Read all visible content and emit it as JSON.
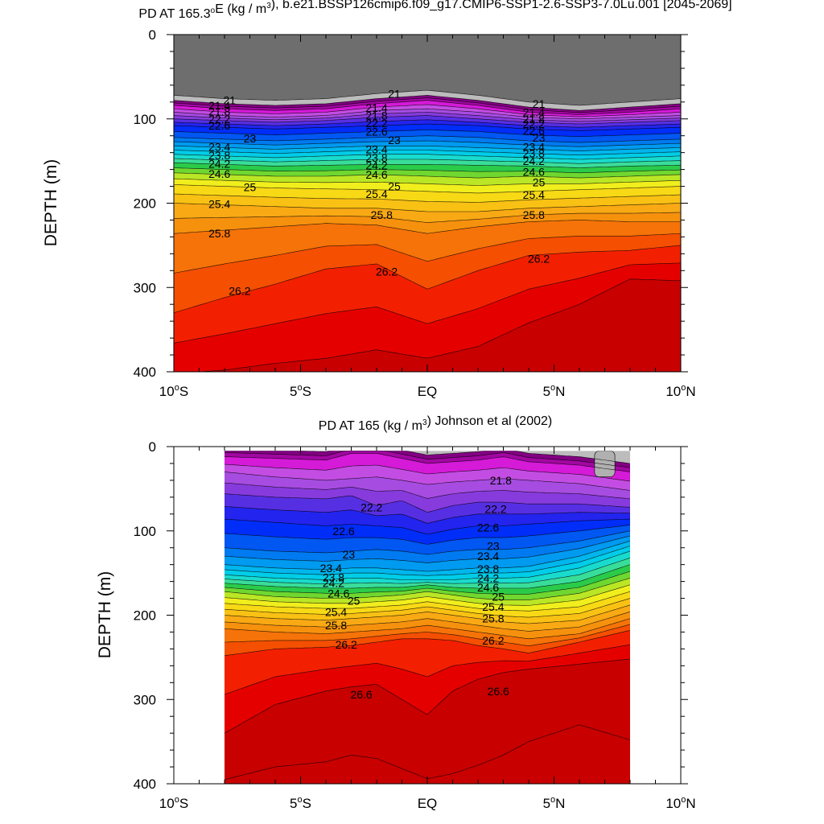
{
  "chart_data": [
    {
      "type": "contour",
      "title": "PD AT 165.3°E (kg / m³), b.e21.BSSP126cmip6.f09_g17.CMIP6-SSP1-2.6-SSP3-7.0Lu.001 [2045-2069]",
      "ylabel": "DEPTH (m)",
      "xlabel": "",
      "xlim": [
        -10,
        10
      ],
      "ylim": [
        400,
        0
      ],
      "x_ticks": [
        -10,
        -5,
        0,
        5,
        10
      ],
      "x_tick_labels": [
        "10°S",
        "5°S",
        "EQ",
        "5°N",
        "10°N"
      ],
      "y_ticks": [
        0,
        100,
        200,
        300,
        400
      ],
      "y_tick_labels": [
        "0",
        "100",
        "200",
        "300",
        "400"
      ],
      "data_extent": [
        -10,
        10
      ],
      "levels": [
        20.6,
        21.0,
        21.2,
        21.4,
        21.6,
        21.8,
        22.0,
        22.2,
        22.4,
        22.6,
        22.8,
        23.0,
        23.2,
        23.4,
        23.6,
        23.8,
        24.0,
        24.2,
        24.4,
        24.6,
        24.8,
        25.0,
        25.2,
        25.4,
        25.6,
        25.8,
        26.0,
        26.2,
        26.4,
        26.6
      ],
      "x": [
        -10,
        -8,
        -6,
        -4,
        -2,
        0,
        2,
        4,
        6,
        8,
        10
      ],
      "isopycnals": [
        {
          "sigma": 20.6,
          "depth": [
            72,
            76,
            78,
            76,
            70,
            66,
            72,
            80,
            84,
            80,
            76
          ]
        },
        {
          "sigma": 21.0,
          "depth": [
            78,
            82,
            84,
            82,
            76,
            72,
            78,
            86,
            90,
            86,
            82
          ]
        },
        {
          "sigma": 21.4,
          "depth": [
            84,
            88,
            90,
            88,
            82,
            78,
            84,
            92,
            95,
            92,
            88
          ]
        },
        {
          "sigma": 21.8,
          "depth": [
            92,
            96,
            98,
            96,
            90,
            88,
            92,
            98,
            100,
            98,
            96
          ]
        },
        {
          "sigma": 22.2,
          "depth": [
            100,
            102,
            104,
            102,
            98,
            96,
            100,
            104,
            106,
            104,
            102
          ]
        },
        {
          "sigma": 22.6,
          "depth": [
            108,
            110,
            112,
            110,
            108,
            106,
            108,
            112,
            114,
            112,
            110
          ]
        },
        {
          "sigma": 23.0,
          "depth": [
            122,
            124,
            126,
            124,
            122,
            120,
            122,
            126,
            128,
            126,
            124
          ]
        },
        {
          "sigma": 23.4,
          "depth": [
            132,
            134,
            136,
            134,
            132,
            132,
            134,
            136,
            138,
            136,
            134
          ]
        },
        {
          "sigma": 23.8,
          "depth": [
            142,
            144,
            146,
            144,
            142,
            142,
            144,
            146,
            148,
            146,
            144
          ]
        },
        {
          "sigma": 24.2,
          "depth": [
            152,
            154,
            156,
            155,
            154,
            154,
            155,
            156,
            158,
            156,
            155
          ]
        },
        {
          "sigma": 24.6,
          "depth": [
            164,
            166,
            168,
            168,
            166,
            168,
            170,
            168,
            170,
            168,
            166
          ]
        },
        {
          "sigma": 25.0,
          "depth": [
            178,
            180,
            182,
            183,
            184,
            186,
            188,
            186,
            184,
            182,
            180
          ]
        },
        {
          "sigma": 25.4,
          "depth": [
            200,
            202,
            204,
            206,
            206,
            210,
            210,
            206,
            204,
            202,
            200
          ]
        },
        {
          "sigma": 25.8,
          "depth": [
            236,
            232,
            228,
            224,
            226,
            236,
            228,
            222,
            220,
            222,
            222
          ]
        },
        {
          "sigma": 26.2,
          "depth": [
            330,
            312,
            296,
            278,
            272,
            302,
            280,
            262,
            258,
            256,
            250
          ]
        },
        {
          "sigma": 26.6,
          "depth": [
            402,
            398,
            390,
            384,
            374,
            384,
            370,
            342,
            320,
            290,
            292
          ]
        }
      ],
      "labels": [
        {
          "text": "21",
          "x": -7.8,
          "y": 78
        },
        {
          "text": "21.4",
          "x": -8.2,
          "y": 84
        },
        {
          "text": "21.8",
          "x": -8.2,
          "y": 91
        },
        {
          "text": "22.2",
          "x": -8.2,
          "y": 100
        },
        {
          "text": "22.6",
          "x": -8.2,
          "y": 108
        },
        {
          "text": "23",
          "x": -7.0,
          "y": 123
        },
        {
          "text": "23.4",
          "x": -8.2,
          "y": 133
        },
        {
          "text": "23.8",
          "x": -8.2,
          "y": 143
        },
        {
          "text": "24.2",
          "x": -8.2,
          "y": 153
        },
        {
          "text": "24.6",
          "x": -8.2,
          "y": 165
        },
        {
          "text": "25",
          "x": -7.0,
          "y": 181
        },
        {
          "text": "25.4",
          "x": -8.2,
          "y": 201
        },
        {
          "text": "25.8",
          "x": -8.2,
          "y": 236
        },
        {
          "text": "26.2",
          "x": -7.4,
          "y": 304
        },
        {
          "text": "21",
          "x": -1.3,
          "y": 70
        },
        {
          "text": "21.4",
          "x": -2.0,
          "y": 87
        },
        {
          "text": "21.8",
          "x": -2.0,
          "y": 96
        },
        {
          "text": "22.2",
          "x": -2.0,
          "y": 105
        },
        {
          "text": "22.6",
          "x": -2.0,
          "y": 115
        },
        {
          "text": "23",
          "x": -1.3,
          "y": 125
        },
        {
          "text": "23.4",
          "x": -2.0,
          "y": 136
        },
        {
          "text": "23.8",
          "x": -2.0,
          "y": 146
        },
        {
          "text": "24.2",
          "x": -2.0,
          "y": 155
        },
        {
          "text": "24.6",
          "x": -2.0,
          "y": 166
        },
        {
          "text": "25",
          "x": -1.3,
          "y": 180
        },
        {
          "text": "25.4",
          "x": -2.0,
          "y": 189
        },
        {
          "text": "25.8",
          "x": -1.8,
          "y": 214
        },
        {
          "text": "26.2",
          "x": -1.6,
          "y": 281
        },
        {
          "text": "21",
          "x": 4.4,
          "y": 82
        },
        {
          "text": "21.4",
          "x": 4.2,
          "y": 92
        },
        {
          "text": "21.8",
          "x": 4.2,
          "y": 100
        },
        {
          "text": "22.2",
          "x": 4.2,
          "y": 106
        },
        {
          "text": "22.6",
          "x": 4.2,
          "y": 114
        },
        {
          "text": "23",
          "x": 4.4,
          "y": 122
        },
        {
          "text": "23.4",
          "x": 4.2,
          "y": 133
        },
        {
          "text": "23.8",
          "x": 4.2,
          "y": 141
        },
        {
          "text": "24.2",
          "x": 4.2,
          "y": 150
        },
        {
          "text": "24.6",
          "x": 4.2,
          "y": 163
        },
        {
          "text": "25",
          "x": 4.4,
          "y": 175
        },
        {
          "text": "25.4",
          "x": 4.2,
          "y": 190
        },
        {
          "text": "25.8",
          "x": 4.2,
          "y": 214
        },
        {
          "text": "26.2",
          "x": 4.4,
          "y": 266
        }
      ]
    },
    {
      "type": "contour",
      "title": "PD AT 165 (kg / m³) Johnson et al (2002)",
      "ylabel": "DEPTH (m)",
      "xlabel": "",
      "xlim": [
        -10,
        10
      ],
      "ylim": [
        400,
        0
      ],
      "x_ticks": [
        -10,
        -5,
        0,
        5,
        10
      ],
      "x_tick_labels": [
        "10°S",
        "5°S",
        "EQ",
        "5°N",
        "10°N"
      ],
      "y_ticks": [
        0,
        100,
        200,
        300,
        400
      ],
      "y_tick_labels": [
        "0",
        "100",
        "200",
        "300",
        "400"
      ],
      "data_extent": [
        -8,
        8
      ],
      "top_depth": 5,
      "levels": [
        21.0,
        21.2,
        21.4,
        21.6,
        21.8,
        22.0,
        22.2,
        22.4,
        22.6,
        22.8,
        23.0,
        23.2,
        23.4,
        23.6,
        23.8,
        24.0,
        24.2,
        24.4,
        24.6,
        24.8,
        25.0,
        25.2,
        25.4,
        25.6,
        25.8,
        26.0,
        26.2,
        26.4,
        26.6,
        26.8
      ],
      "x": [
        -8,
        -6,
        -4,
        -3,
        -2,
        -1,
        0,
        1,
        2,
        3,
        4,
        6,
        8
      ],
      "isopycnals": [
        {
          "sigma": 21.4,
          "depth": [
            12,
            14,
            16,
            8,
            8,
            14,
            20,
            18,
            16,
            12,
            18,
            22,
            30
          ]
        },
        {
          "sigma": 21.8,
          "depth": [
            30,
            36,
            40,
            38,
            36,
            40,
            45,
            42,
            40,
            38,
            40,
            44,
            52
          ]
        },
        {
          "sigma": 22.2,
          "depth": [
            56,
            60,
            62,
            58,
            70,
            64,
            78,
            70,
            66,
            66,
            68,
            68,
            72
          ]
        },
        {
          "sigma": 22.6,
          "depth": [
            86,
            90,
            94,
            92,
            94,
            96,
            104,
            98,
            94,
            94,
            92,
            88,
            86
          ]
        },
        {
          "sigma": 23.0,
          "depth": [
            120,
            124,
            126,
            124,
            122,
            124,
            128,
            124,
            122,
            122,
            120,
            112,
            100
          ]
        },
        {
          "sigma": 23.4,
          "depth": [
            140,
            144,
            146,
            144,
            144,
            146,
            148,
            146,
            144,
            144,
            142,
            130,
            112
          ]
        },
        {
          "sigma": 23.8,
          "depth": [
            152,
            156,
            158,
            156,
            156,
            158,
            158,
            158,
            156,
            156,
            155,
            144,
            124
          ]
        },
        {
          "sigma": 24.2,
          "depth": [
            162,
            166,
            168,
            168,
            167,
            167,
            164,
            167,
            168,
            168,
            168,
            160,
            140
          ]
        },
        {
          "sigma": 24.6,
          "depth": [
            172,
            178,
            180,
            180,
            178,
            176,
            172,
            176,
            180,
            182,
            182,
            174,
            156
          ]
        },
        {
          "sigma": 25.0,
          "depth": [
            186,
            190,
            192,
            192,
            190,
            188,
            184,
            188,
            192,
            194,
            195,
            190,
            172
          ]
        },
        {
          "sigma": 25.4,
          "depth": [
            200,
            204,
            206,
            204,
            202,
            200,
            196,
            200,
            204,
            208,
            210,
            206,
            188
          ]
        },
        {
          "sigma": 25.8,
          "depth": [
            216,
            220,
            222,
            220,
            218,
            216,
            212,
            216,
            220,
            224,
            228,
            222,
            204
          ]
        },
        {
          "sigma": 26.2,
          "depth": [
            248,
            240,
            238,
            236,
            232,
            228,
            228,
            230,
            236,
            240,
            245,
            232,
            218
          ]
        },
        {
          "sigma": 26.6,
          "depth": [
            340,
            306,
            290,
            285,
            282,
            300,
            318,
            290,
            276,
            268,
            264,
            258,
            252
          ]
        },
        {
          "sigma": 26.8,
          "depth": [
            395,
            380,
            374,
            366,
            370,
            382,
            394,
            388,
            378,
            366,
            350,
            330,
            348
          ]
        }
      ],
      "patch": {
        "x": [
          6.6,
          7.4
        ],
        "depth_top": 5,
        "depth_bottom": 36
      },
      "labels": [
        {
          "text": "22.2",
          "x": -2.2,
          "y": 72
        },
        {
          "text": "21.8",
          "x": 2.9,
          "y": 40
        },
        {
          "text": "22.2",
          "x": 2.7,
          "y": 74
        },
        {
          "text": "22.6",
          "x": -3.3,
          "y": 100
        },
        {
          "text": "22.6",
          "x": 2.4,
          "y": 96
        },
        {
          "text": "23",
          "x": -3.1,
          "y": 128
        },
        {
          "text": "23",
          "x": 2.6,
          "y": 118
        },
        {
          "text": "23.4",
          "x": -3.8,
          "y": 144
        },
        {
          "text": "23.8",
          "x": -3.7,
          "y": 155
        },
        {
          "text": "24.2",
          "x": -3.7,
          "y": 162
        },
        {
          "text": "24.6",
          "x": -3.5,
          "y": 174
        },
        {
          "text": "25",
          "x": -2.9,
          "y": 183
        },
        {
          "text": "25.4",
          "x": -3.6,
          "y": 196
        },
        {
          "text": "25.8",
          "x": -3.6,
          "y": 212
        },
        {
          "text": "26.2",
          "x": -3.2,
          "y": 235
        },
        {
          "text": "23.4",
          "x": 2.4,
          "y": 130
        },
        {
          "text": "23.8",
          "x": 2.4,
          "y": 145
        },
        {
          "text": "24.2",
          "x": 2.4,
          "y": 156
        },
        {
          "text": "24.6",
          "x": 2.4,
          "y": 167
        },
        {
          "text": "25",
          "x": 2.8,
          "y": 178
        },
        {
          "text": "25.4",
          "x": 2.6,
          "y": 190
        },
        {
          "text": "25.8",
          "x": 2.6,
          "y": 204
        },
        {
          "text": "26.2",
          "x": 2.6,
          "y": 230
        },
        {
          "text": "26.6",
          "x": -2.6,
          "y": 294
        },
        {
          "text": "26.6",
          "x": 2.8,
          "y": 290
        }
      ]
    }
  ]
}
